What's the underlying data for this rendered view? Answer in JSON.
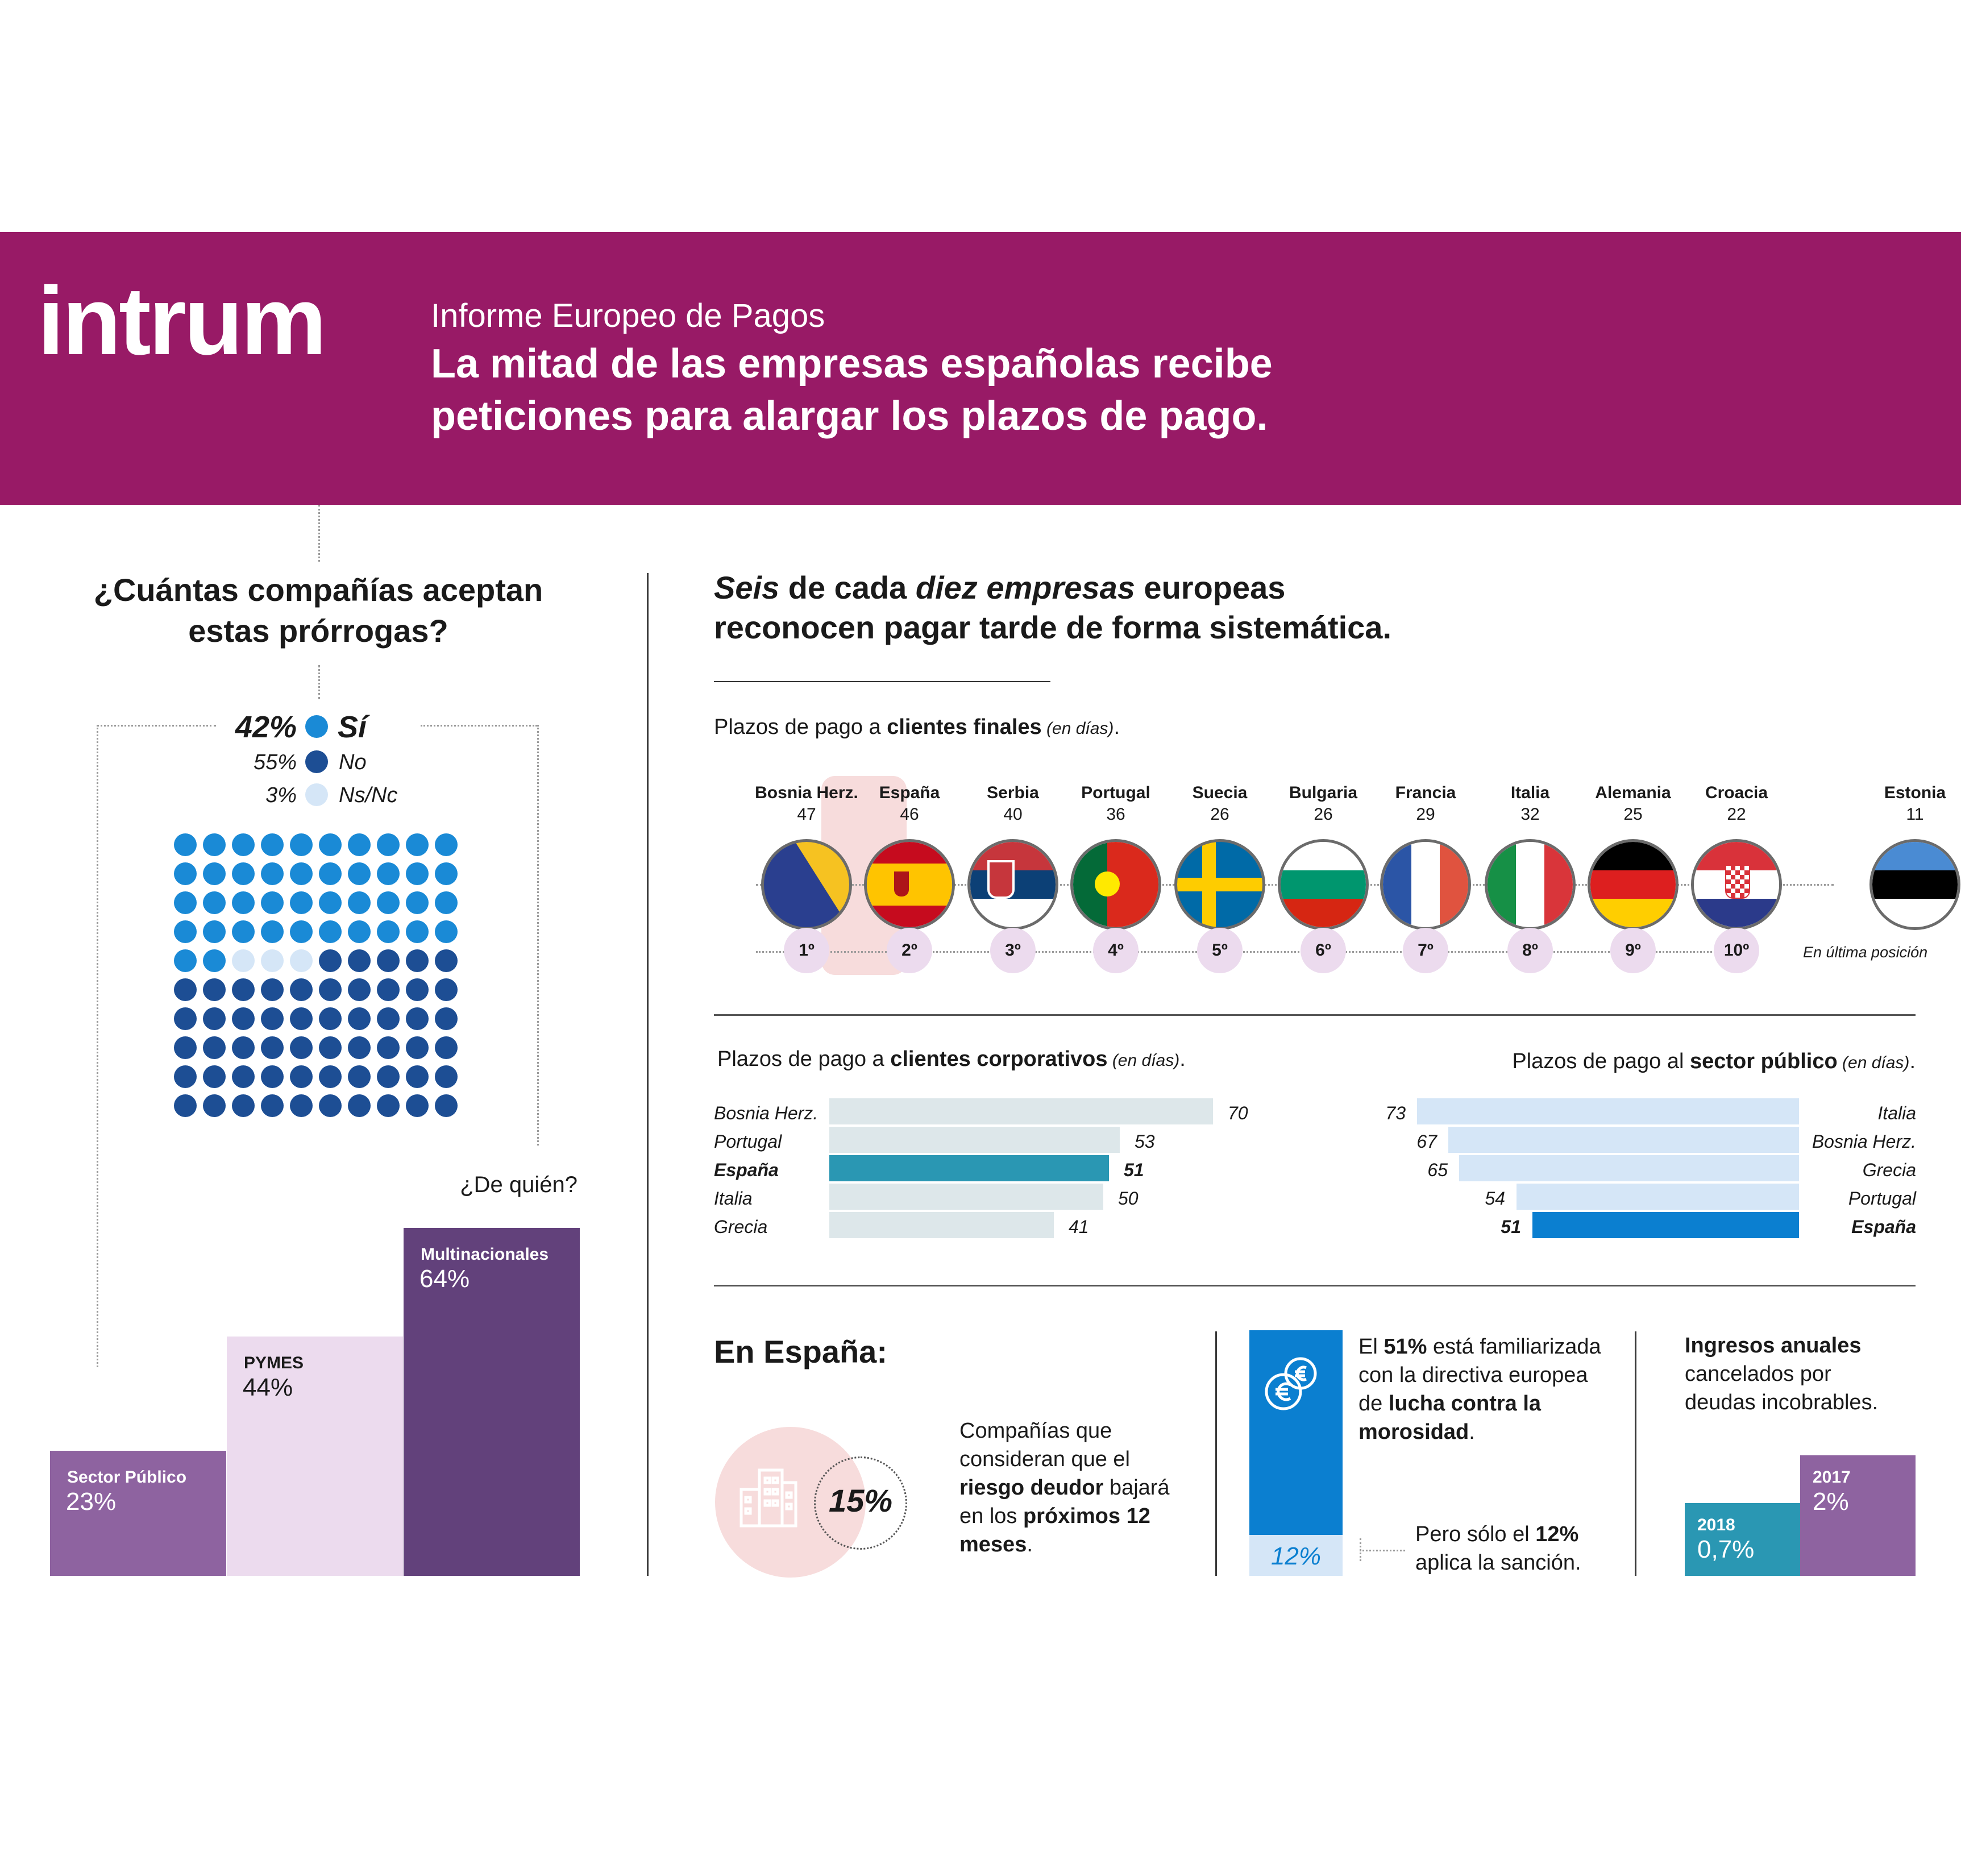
{
  "header": {
    "logo": "intrum",
    "subtitle": "Informe Europeo de Pagos",
    "title_line1": "La mitad de las empresas españolas recibe",
    "title_line2": "peticiones para alargar los plazos de pago."
  },
  "left": {
    "question_line1": "¿Cuántas compañías aceptan",
    "question_line2": "estas prórrogas?",
    "legend": [
      {
        "pct": "42%",
        "label": "Sí",
        "color": "#1a8ad6"
      },
      {
        "pct": "55%",
        "label": "No",
        "color": "#1d4e94"
      },
      {
        "pct": "3%",
        "label": "Ns/Nc",
        "color": "#d5e6f7"
      }
    ],
    "de_quien": "¿De quién?"
  },
  "right_title": {
    "w1": "Seis",
    "w2": " de cada ",
    "w3": "diez empresas",
    "w4": " europeas",
    "line2": "reconocen pagar tarde de forma sistemática."
  },
  "clientes_finales": {
    "pre": "Plazos de pago a ",
    "bold": "clientes finales",
    "post": " (en días)",
    "dot": ".",
    "estonia_note": "En última posición"
  },
  "corporativos": {
    "pre": "Plazos de pago a ",
    "bold": "clientes corporativos",
    "post": " (en días)",
    "dot": "."
  },
  "publico": {
    "pre": "Plazos de pago al ",
    "bold": "sector público",
    "post": " (en días)",
    "dot": "."
  },
  "spain": {
    "title": "En España:",
    "pct15": "15%",
    "risk_l1": "Compañías que",
    "risk_l2": "consideran que el",
    "risk_l3a": "riesgo deudor",
    "risk_l3b": " bajará",
    "risk_l4a": "en los ",
    "risk_l4b": "próximos 12",
    "risk_l5a": "meses",
    "risk_l5b": ".",
    "dir_l1a": "El ",
    "dir_l1b": "51%",
    "dir_l1c": " está familiarizada",
    "dir_l2": "con la directiva europea",
    "dir_l3a": "de ",
    "dir_l3b": "lucha contra la",
    "dir_l4a": "morosidad",
    "dir_l4b": ".",
    "pct12": "12%",
    "sancion_l1a": "Pero sólo el ",
    "sancion_l1b": "12%",
    "sancion_l2": "aplica la sanción.",
    "ing_l1": "Ingresos anuales",
    "ing_l2": "cancelados por",
    "ing_l3": "deudas incobrables."
  },
  "chart_data": [
    {
      "type": "waffle",
      "title": "¿Cuántas compañías aceptan estas prórrogas?",
      "categories": [
        "Sí",
        "No",
        "Ns/Nc"
      ],
      "values": [
        42,
        55,
        3
      ],
      "unit": "%"
    },
    {
      "type": "bar",
      "title": "¿De quién?",
      "categories": [
        "Sector Público",
        "PYMES",
        "Multinacionales"
      ],
      "values": [
        23,
        44,
        64
      ],
      "labels": [
        "23%",
        "44%",
        "64%"
      ],
      "colors": [
        "#8e63a0",
        "#ecdbee",
        "#62417b"
      ],
      "ylim": [
        0,
        64
      ]
    },
    {
      "type": "table",
      "title": "Plazos de pago a clientes finales (en días).",
      "countries": [
        "Bosnia Herz.",
        "España",
        "Serbia",
        "Portugal",
        "Suecia",
        "Bulgaria",
        "Francia",
        "Italia",
        "Alemania",
        "Croacia",
        "Estonia"
      ],
      "days": [
        47,
        46,
        40,
        36,
        26,
        26,
        29,
        32,
        25,
        22,
        11
      ],
      "ranks": [
        "1º",
        "2º",
        "3º",
        "4º",
        "5º",
        "6º",
        "7º",
        "8º",
        "9º",
        "10º",
        ""
      ]
    },
    {
      "type": "bar",
      "title": "Plazos de pago a clientes corporativos (en días).",
      "categories": [
        "Bosnia Herz.",
        "Portugal",
        "España",
        "Italia",
        "Grecia"
      ],
      "values": [
        70,
        53,
        51,
        50,
        41
      ],
      "highlight": "España",
      "colors": {
        "base": "#dde7ea",
        "highlight": "#2a97b3"
      },
      "xlim": [
        0,
        70
      ]
    },
    {
      "type": "bar",
      "title": "Plazos de pago al sector público (en días).",
      "categories": [
        "Italia",
        "Bosnia Herz.",
        "Grecia",
        "Portugal",
        "España"
      ],
      "values": [
        73,
        67,
        65,
        54,
        51
      ],
      "highlight": "España",
      "colors": {
        "base": "#d5e6f7",
        "highlight": "#0b7fd0"
      },
      "xlim": [
        0,
        73
      ]
    },
    {
      "type": "bar",
      "title": "Ingresos anuales cancelados por deudas incobrables.",
      "categories": [
        "2018",
        "2017"
      ],
      "values": [
        0.7,
        2
      ],
      "labels": [
        "0,7%",
        "2%"
      ],
      "colors": [
        "#2a97b3",
        "#8e63a0"
      ]
    }
  ]
}
